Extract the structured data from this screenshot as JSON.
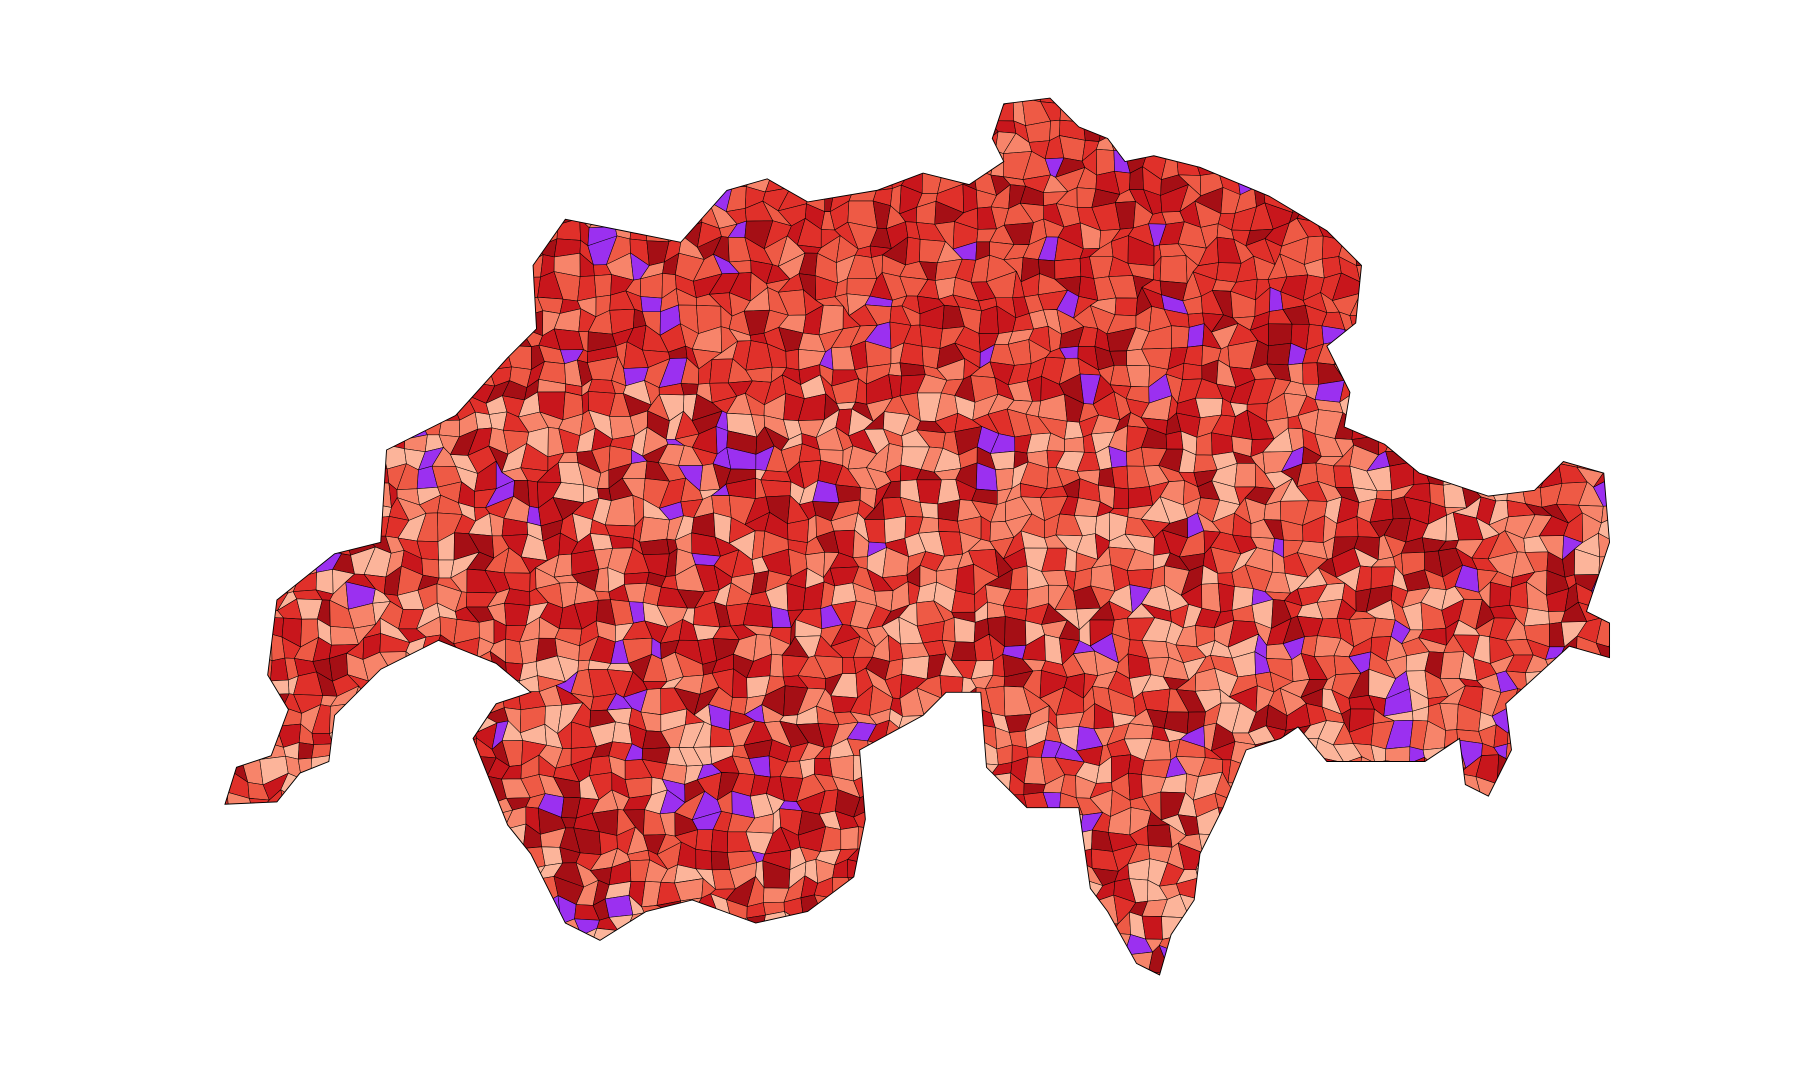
{
  "map": {
    "colors": [
      "#fcb49a",
      "#f7846a",
      "#ee5a45",
      "#e0302a",
      "#c8161c",
      "#a50f15",
      "#9b30f0"
    ]
  }
}
